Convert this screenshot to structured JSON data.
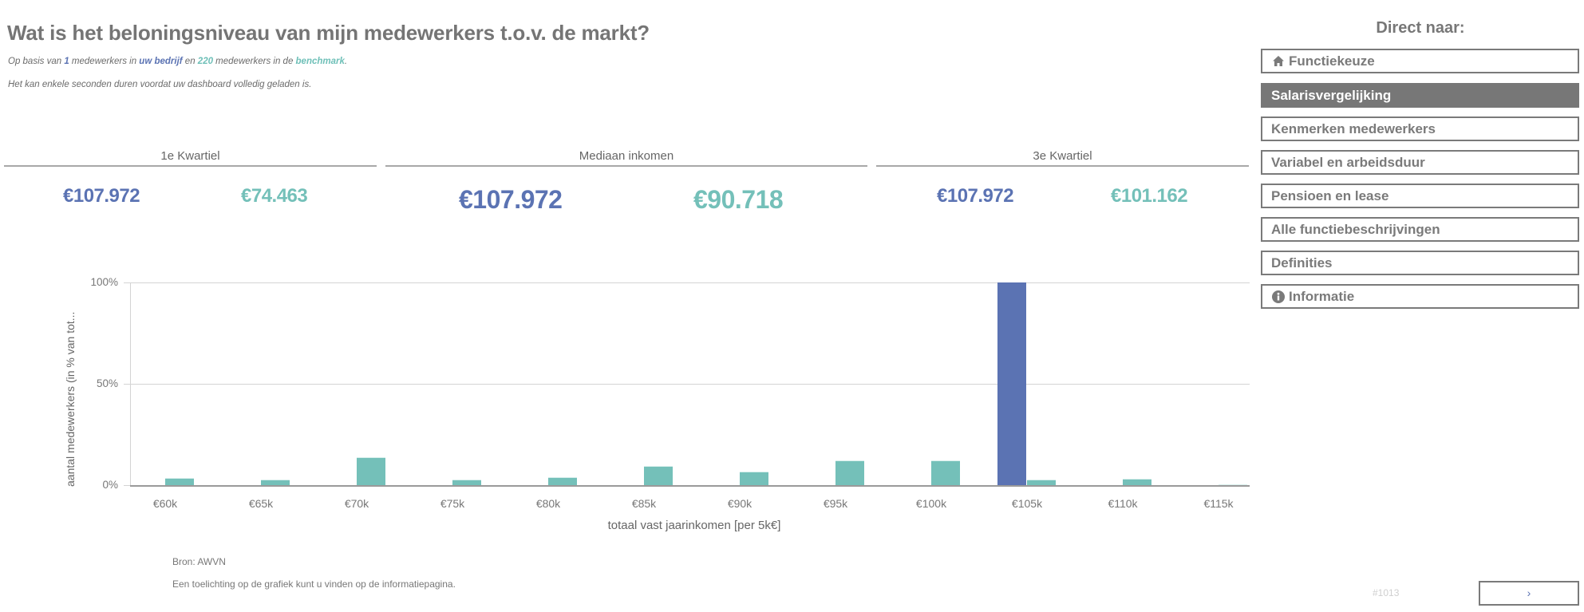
{
  "header": {
    "title": "Wat is het beloningsniveau van mijn medewerkers t.o.v. de markt?",
    "subtitle": {
      "prefix": "Op basis van ",
      "company_count": "1",
      "mid1": " medewerkers in ",
      "company_label": "uw bedrijf",
      "mid2": " en ",
      "benchmark_count": "220",
      "mid3": " medewerkers in de ",
      "benchmark_label": "benchmark",
      "suffix": "."
    },
    "loading_note": "Het kan enkele seconden duren voordat uw dashboard volledig geladen is."
  },
  "kpis": [
    {
      "label": "1e Kwartiel",
      "company": "€107.972",
      "benchmark": "€74.463"
    },
    {
      "label": "Mediaan inkomen",
      "company": "€107.972",
      "benchmark": "€90.718"
    },
    {
      "label": "3e Kwartiel",
      "company": "€107.972",
      "benchmark": "€101.162"
    }
  ],
  "colors": {
    "company": "#5b73b3",
    "benchmark": "#74c0b9",
    "nav_active": "#777777",
    "text": "#757575"
  },
  "chart_data": {
    "type": "bar",
    "title": "",
    "xlabel": "totaal vast jaarinkomen [per 5k€]",
    "ylabel": "aantal medewerkers (in % van tot...",
    "ylim": [
      0,
      100
    ],
    "yticks": [
      "0%",
      "50%",
      "100%"
    ],
    "grid": true,
    "legend": "none",
    "categories": [
      "€60k",
      "€65k",
      "€70k",
      "€75k",
      "€80k",
      "€85k",
      "€90k",
      "€95k",
      "€100k",
      "€105k",
      "€110k",
      "€115k"
    ],
    "series": [
      {
        "name": "uw bedrijf",
        "color": "#5b73b3",
        "values": [
          0,
          0,
          0,
          0,
          0,
          0,
          0,
          0,
          0,
          100,
          0,
          0
        ]
      },
      {
        "name": "benchmark",
        "color": "#74c0b9",
        "values": [
          4,
          3,
          14,
          3,
          4.5,
          10,
          7,
          12.5,
          12.5,
          3,
          3.5,
          0.5
        ]
      }
    ]
  },
  "footer": {
    "source": "Bron: AWVN",
    "note": "Een toelichting op de grafiek kunt u vinden op de informatiepagina.",
    "page_id": "#1013",
    "next_label": "›"
  },
  "nav": {
    "title": "Direct naar:",
    "items": [
      {
        "label": "Functiekeuze",
        "icon": "home-icon",
        "active": false
      },
      {
        "label": "Salarisvergelijking",
        "icon": "",
        "active": true
      },
      {
        "label": "Kenmerken medewerkers",
        "icon": "",
        "active": false
      },
      {
        "label": "Variabel en arbeidsduur",
        "icon": "",
        "active": false
      },
      {
        "label": "Pensioen en lease",
        "icon": "",
        "active": false
      },
      {
        "label": "Alle functiebeschrijvingen",
        "icon": "",
        "active": false
      },
      {
        "label": "Definities",
        "icon": "",
        "active": false
      },
      {
        "label": "Informatie",
        "icon": "info-icon",
        "active": false
      }
    ]
  }
}
